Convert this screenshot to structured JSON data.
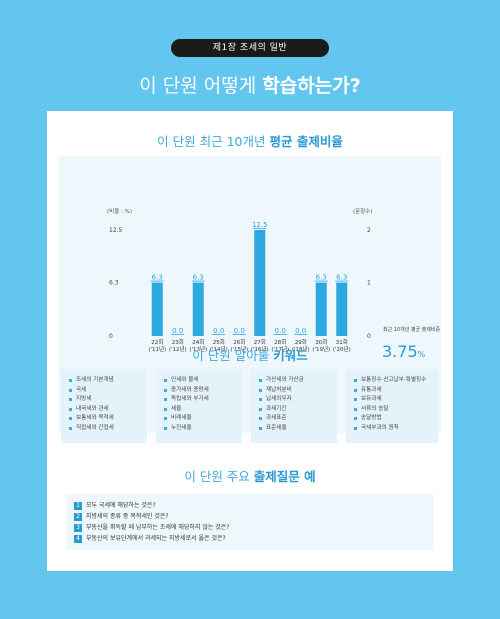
{
  "chapter": "제1장  조세의 일반",
  "main_title": {
    "prefix": "이 단원 어떻게",
    "bold": "학습하는가?"
  },
  "section1": {
    "prefix": "이 단원 최근 10개년",
    "bold": "평균 출제비율"
  },
  "chart_data": {
    "type": "bar",
    "left_axis_label": "(비율 : %)",
    "right_axis_label": "(문항수)",
    "left_ticks": [
      "12.5",
      "6.3",
      "0"
    ],
    "right_ticks": [
      "2",
      "1",
      "0"
    ],
    "ylim": [
      0,
      12.5
    ],
    "categories": [
      {
        "top": "22회",
        "bottom": "('11년)"
      },
      {
        "top": "23회",
        "bottom": "('12년)"
      },
      {
        "top": "24회",
        "bottom": "('13년)"
      },
      {
        "top": "25회",
        "bottom": "('14년)"
      },
      {
        "top": "26회",
        "bottom": "('15년)"
      },
      {
        "top": "27회",
        "bottom": "('16년)"
      },
      {
        "top": "28회",
        "bottom": "('17년)"
      },
      {
        "top": "29회",
        "bottom": "('18년)"
      },
      {
        "top": "30회",
        "bottom": "('19년)"
      },
      {
        "top": "31회",
        "bottom": "('20년)"
      }
    ],
    "values": [
      6.3,
      0.0,
      6.3,
      0.0,
      0.0,
      12.5,
      0.0,
      0.0,
      6.3,
      6.3
    ],
    "value_labels": [
      "6.3",
      "0.0",
      "6.3",
      "0.0",
      "0.0",
      "12.5",
      "0.0",
      "0.0",
      "6.3",
      "6.3"
    ],
    "bar_color": "#2ea8e0"
  },
  "average": {
    "label": "최근 10개년 평균 출제비중",
    "value": "3.75",
    "unit": "%"
  },
  "section2": {
    "prefix": "이 단원 알아둘",
    "bold": "키워드"
  },
  "keywords": [
    [
      "조세의 기본개념",
      "국세",
      "지방세",
      "내국세와 관세",
      "보통세와 목적세",
      "직접세와 간접세"
    ],
    [
      "인세와 물세",
      "종가세와 종량세",
      "독립세와 부가세",
      "세율",
      "비례세율",
      "누진세율"
    ],
    [
      "가산세와 가산금",
      "제납처분비",
      "납세의무자",
      "과세기간",
      "과세표준",
      "표준세율"
    ],
    [
      "보통징수·신고납부·특별징수",
      "유통과세",
      "보유과세",
      "서류의 송달",
      "송달방법",
      "국세부과의 원칙"
    ]
  ],
  "section3": {
    "prefix": "이 단원 주요",
    "bold": "출제질문 예"
  },
  "questions": [
    {
      "num": "1",
      "text": "모두 국세에 해당하는 것은?"
    },
    {
      "num": "2",
      "text": "지방세의 종류 중 목적세인 것은?"
    },
    {
      "num": "3",
      "text": "부동산을 취득할 때 납부하는 조세에 해당하지 않는 것은?"
    },
    {
      "num": "4",
      "text": "부동산의 보유단계에서 과세되는 지방세로서 옳은 것은?"
    }
  ]
}
